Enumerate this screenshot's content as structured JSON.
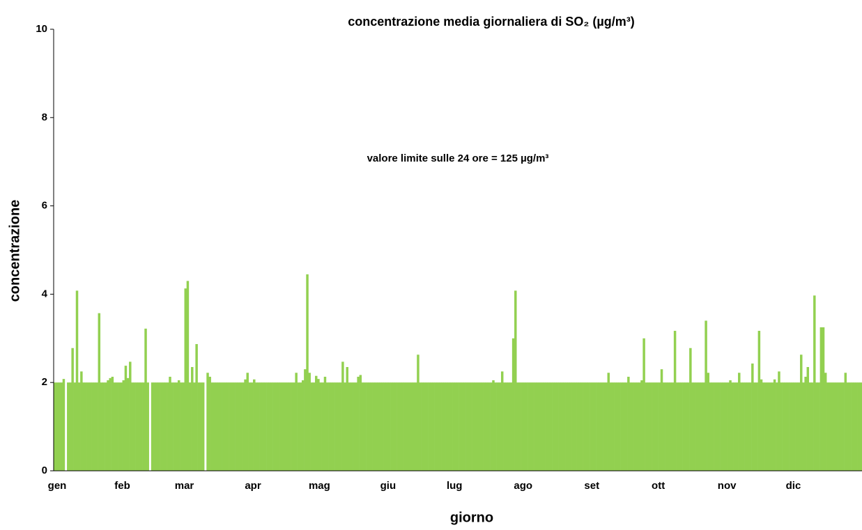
{
  "chart_data": {
    "type": "bar",
    "title": "concentrazione media giornaliera di SO₂ (µg/m³)",
    "annotation": "valore limite sulle 24 ore = 125 µg/m³",
    "x_label": "giorno",
    "y_label": "concentrazione",
    "color": "#92d050",
    "ylim": [
      0,
      10
    ],
    "yticks": [
      0,
      2,
      4,
      6,
      8,
      10
    ],
    "categories": [
      "gen",
      null,
      null,
      null,
      null,
      null,
      null,
      null,
      null,
      null,
      null,
      null,
      null,
      null,
      null,
      null,
      null,
      null,
      null,
      null,
      null,
      null,
      null,
      null,
      null,
      null,
      null,
      null,
      null,
      null,
      null,
      "feb",
      null,
      null,
      null,
      null,
      null,
      null,
      null,
      null,
      null,
      null,
      null,
      null,
      null,
      null,
      null,
      null,
      null,
      null,
      null,
      null,
      null,
      null,
      null,
      null,
      null,
      null,
      null,
      "mar",
      null,
      null,
      null,
      null,
      null,
      null,
      null,
      null,
      null,
      null,
      null,
      null,
      null,
      null,
      null,
      null,
      null,
      null,
      null,
      null,
      null,
      null,
      null,
      null,
      null,
      null,
      null,
      null,
      null,
      null,
      "apr",
      null,
      null,
      null,
      null,
      null,
      null,
      null,
      null,
      null,
      null,
      null,
      null,
      null,
      null,
      null,
      null,
      null,
      null,
      null,
      null,
      null,
      null,
      null,
      null,
      null,
      null,
      null,
      null,
      null,
      "mag",
      null,
      null,
      null,
      null,
      null,
      null,
      null,
      null,
      null,
      null,
      null,
      null,
      null,
      null,
      null,
      null,
      null,
      null,
      null,
      null,
      null,
      null,
      null,
      null,
      null,
      null,
      null,
      null,
      null,
      null,
      "giu",
      null,
      null,
      null,
      null,
      null,
      null,
      null,
      null,
      null,
      null,
      null,
      null,
      null,
      null,
      null,
      null,
      null,
      null,
      null,
      null,
      null,
      null,
      null,
      null,
      null,
      null,
      null,
      null,
      null,
      "lug",
      null,
      null,
      null,
      null,
      null,
      null,
      null,
      null,
      null,
      null,
      null,
      null,
      null,
      null,
      null,
      null,
      null,
      null,
      null,
      null,
      null,
      null,
      null,
      null,
      null,
      null,
      null,
      null,
      null,
      null,
      "ago",
      null,
      null,
      null,
      null,
      null,
      null,
      null,
      null,
      null,
      null,
      null,
      null,
      null,
      null,
      null,
      null,
      null,
      null,
      null,
      null,
      null,
      null,
      null,
      null,
      null,
      null,
      null,
      null,
      null,
      null,
      "set",
      null,
      null,
      null,
      null,
      null,
      null,
      null,
      null,
      null,
      null,
      null,
      null,
      null,
      null,
      null,
      null,
      null,
      null,
      null,
      null,
      null,
      null,
      null,
      null,
      null,
      null,
      null,
      null,
      null,
      "ott",
      null,
      null,
      null,
      null,
      null,
      null,
      null,
      null,
      null,
      null,
      null,
      null,
      null,
      null,
      null,
      null,
      null,
      null,
      null,
      null,
      null,
      null,
      null,
      null,
      null,
      null,
      null,
      null,
      null,
      null,
      "nov",
      null,
      null,
      null,
      null,
      null,
      null,
      null,
      null,
      null,
      null,
      null,
      null,
      null,
      null,
      null,
      null,
      null,
      null,
      null,
      null,
      null,
      null,
      null,
      null,
      null,
      null,
      null,
      null,
      null,
      "dic",
      null,
      null,
      null,
      null,
      null,
      null,
      null,
      null,
      null,
      null,
      null,
      null,
      null,
      null,
      null,
      null,
      null,
      null,
      null,
      null,
      null,
      null,
      null,
      null,
      null,
      null,
      null,
      null,
      null,
      null
    ],
    "values": [
      2,
      2,
      2,
      2,
      2.08,
      null,
      2,
      2,
      2.78,
      2,
      4.08,
      2,
      2.25,
      2,
      2,
      2,
      2,
      2,
      2,
      2,
      3.57,
      2,
      2,
      2,
      2.05,
      2.1,
      2.13,
      2,
      2,
      2,
      2,
      2.05,
      2.38,
      2.1,
      2.47,
      2,
      2,
      2,
      2,
      2,
      2,
      3.22,
      2,
      null,
      2,
      2,
      2,
      2,
      2,
      2,
      2,
      2,
      2.13,
      2,
      2,
      2,
      2.05,
      2,
      2,
      4.13,
      4.3,
      2,
      2.35,
      2,
      2.87,
      2,
      2,
      2,
      null,
      2.22,
      2.13,
      2,
      2,
      2,
      2,
      2,
      2,
      2,
      2,
      2,
      2,
      2,
      2,
      2,
      2,
      2,
      2.07,
      2.22,
      2,
      2,
      2.07,
      2,
      2,
      2,
      2,
      2,
      2,
      2,
      2,
      2,
      2,
      2,
      2,
      2,
      2,
      2,
      2,
      2,
      2,
      2.22,
      2,
      2,
      2.05,
      2.3,
      4.45,
      2.22,
      2,
      2,
      2.15,
      2.08,
      2,
      2,
      2.13,
      2,
      2,
      2,
      2,
      2,
      2,
      2,
      2.47,
      2,
      2.35,
      2,
      2,
      2,
      2,
      2.13,
      2.17,
      2,
      2,
      2,
      2,
      2,
      2,
      2,
      2,
      2,
      2,
      2,
      2,
      2,
      2,
      2,
      2,
      2,
      2,
      2,
      2,
      2,
      2,
      2,
      2,
      2,
      2.63,
      2,
      2,
      2,
      2,
      2,
      2,
      2,
      2,
      2,
      2,
      2,
      2,
      2,
      2,
      2,
      2,
      2,
      2,
      2,
      2,
      2,
      2,
      2,
      2,
      2,
      2,
      2,
      2,
      2,
      2,
      2,
      2,
      2,
      2.05,
      2,
      2,
      2,
      2.25,
      2,
      2,
      2,
      2,
      3.0,
      4.08,
      2,
      2,
      2,
      2,
      2,
      2,
      2,
      2,
      2,
      2,
      2,
      2,
      2,
      2,
      2,
      2,
      2,
      2,
      2,
      2,
      2,
      2,
      2,
      2,
      2,
      2,
      2,
      2,
      2,
      2,
      2,
      2,
      2,
      2,
      2,
      2,
      2,
      2,
      2,
      2,
      2,
      2.22,
      2,
      2,
      2,
      2,
      2,
      2,
      2,
      2,
      2.13,
      2,
      2,
      2,
      2,
      2,
      2.05,
      3.0,
      2,
      2,
      2,
      2,
      2,
      2,
      2,
      2.3,
      2,
      2,
      2,
      2,
      2,
      3.17,
      2,
      2,
      2,
      2,
      2,
      2,
      2.78,
      2,
      2,
      2,
      2,
      2,
      2,
      3.4,
      2.22,
      2,
      2,
      2,
      2,
      2,
      2,
      2,
      2,
      2,
      2.05,
      2,
      2,
      2,
      2.22,
      2,
      2,
      2,
      2,
      2,
      2.43,
      2,
      2,
      3.17,
      2.07,
      2,
      2,
      2,
      2,
      2,
      2.07,
      2,
      2.25,
      2,
      2,
      2,
      2,
      2,
      2,
      2,
      2,
      2,
      2.63,
      2,
      2.13,
      2.35,
      2,
      2,
      3.97,
      2,
      2,
      3.25,
      3.25,
      2.22,
      2,
      2,
      2,
      2,
      2,
      2,
      2,
      2,
      2.22,
      2,
      2,
      2,
      2,
      2,
      2,
      2
    ]
  }
}
